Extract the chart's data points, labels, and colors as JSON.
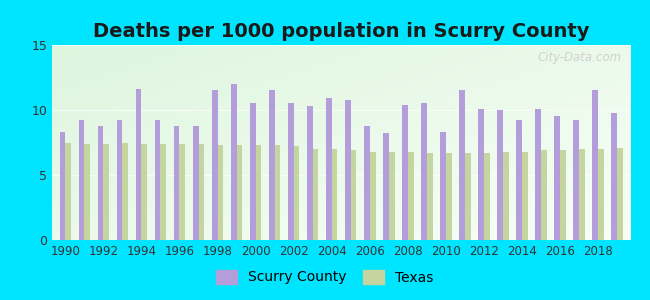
{
  "title": "Deaths per 1000 population in Scurry County",
  "years": [
    1990,
    1991,
    1992,
    1993,
    1994,
    1995,
    1996,
    1997,
    1998,
    1999,
    2000,
    2001,
    2002,
    2003,
    2004,
    2005,
    2006,
    2007,
    2008,
    2009,
    2010,
    2011,
    2012,
    2013,
    2014,
    2015,
    2016,
    2017,
    2018,
    2019
  ],
  "scurry": [
    8.3,
    9.2,
    8.8,
    9.2,
    11.6,
    9.2,
    8.8,
    8.8,
    11.5,
    12.0,
    10.5,
    11.5,
    10.5,
    10.3,
    10.9,
    10.8,
    8.8,
    8.2,
    10.4,
    10.5,
    8.3,
    11.5,
    10.1,
    10.0,
    9.2,
    10.1,
    9.5,
    9.2,
    11.5,
    9.8
  ],
  "texas": [
    7.5,
    7.4,
    7.4,
    7.5,
    7.4,
    7.4,
    7.4,
    7.4,
    7.3,
    7.3,
    7.3,
    7.3,
    7.2,
    7.0,
    7.0,
    6.9,
    6.8,
    6.8,
    6.8,
    6.7,
    6.7,
    6.7,
    6.7,
    6.8,
    6.8,
    6.9,
    6.9,
    7.0,
    7.0,
    7.1
  ],
  "scurry_color": "#b39ddb",
  "texas_color": "#c5d5a0",
  "background_outer": "#00e5ff",
  "ylim": [
    0,
    15
  ],
  "yticks": [
    0,
    5,
    10,
    15
  ],
  "title_fontsize": 14,
  "bar_width": 0.3,
  "legend_scurry": "Scurry County",
  "legend_texas": "Texas",
  "watermark": "City-Data.com"
}
